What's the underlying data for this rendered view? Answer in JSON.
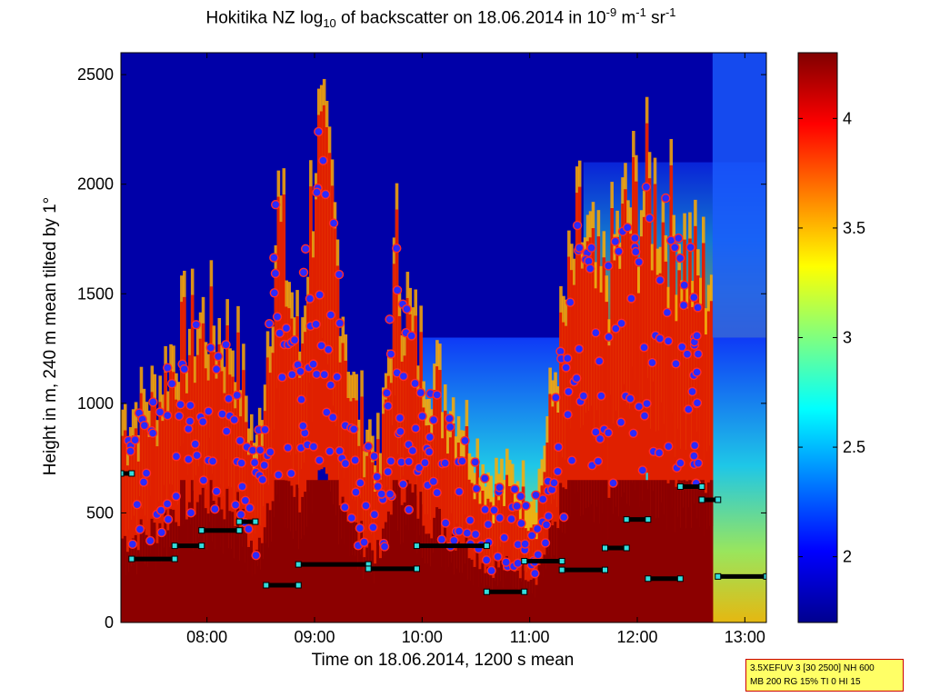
{
  "chart_data": {
    "type": "heatmap",
    "title": {
      "prefix": "Hokitika NZ log",
      "sub": "10",
      "mid": " of backscatter on 18.06.2014 in 10",
      "sup1": "-9",
      "mid2": " m",
      "sup2": "-1",
      "mid3": " sr",
      "sup3": "-1"
    },
    "xlabel": "Time on 18.06.2014, 1200 s mean",
    "ylabel": "Height in m, 240 m mean tilted by 1°",
    "x_ticks": [
      "08:00",
      "09:00",
      "10:00",
      "11:00",
      "12:00",
      "13:00"
    ],
    "x_tick_hours": [
      8,
      9,
      10,
      11,
      12,
      13
    ],
    "xlim_hours": [
      7.2,
      13.2
    ],
    "y_ticks": [
      0,
      500,
      1000,
      1500,
      2000,
      2500
    ],
    "ylim": [
      0,
      2600
    ],
    "colorbar": {
      "ticks": [
        2,
        2.5,
        3,
        3.5,
        4
      ],
      "tick_labels": [
        "2",
        "2.5",
        "3",
        "3.5",
        "4"
      ],
      "range": [
        1.7,
        4.3
      ],
      "colormap": "jet"
    },
    "layer_tops": [
      {
        "t": 7.25,
        "h": 900
      },
      {
        "t": 7.5,
        "h": 1000
      },
      {
        "t": 7.75,
        "h": 1300
      },
      {
        "t": 8.0,
        "h": 1350
      },
      {
        "t": 8.25,
        "h": 1250
      },
      {
        "t": 8.45,
        "h": 700
      },
      {
        "t": 8.65,
        "h": 1900
      },
      {
        "t": 8.85,
        "h": 1200
      },
      {
        "t": 9.0,
        "h": 2250
      },
      {
        "t": 9.15,
        "h": 1900
      },
      {
        "t": 9.35,
        "h": 1000
      },
      {
        "t": 9.6,
        "h": 700
      },
      {
        "t": 9.75,
        "h": 1700
      },
      {
        "t": 9.9,
        "h": 1300
      },
      {
        "t": 10.1,
        "h": 1100
      },
      {
        "t": 10.35,
        "h": 900
      },
      {
        "t": 10.6,
        "h": 600
      },
      {
        "t": 10.85,
        "h": 600
      },
      {
        "t": 11.05,
        "h": 500
      },
      {
        "t": 11.25,
        "h": 1200
      },
      {
        "t": 11.45,
        "h": 1800
      },
      {
        "t": 11.65,
        "h": 1500
      },
      {
        "t": 11.9,
        "h": 1900
      },
      {
        "t": 12.1,
        "h": 2000
      },
      {
        "t": 12.35,
        "h": 1800
      },
      {
        "t": 12.55,
        "h": 1600
      }
    ],
    "mixing_height_steps": [
      {
        "t0": 7.2,
        "t1": 7.3,
        "h": 680
      },
      {
        "t0": 7.3,
        "t1": 7.7,
        "h": 290
      },
      {
        "t0": 7.7,
        "t1": 7.95,
        "h": 350
      },
      {
        "t0": 7.95,
        "t1": 8.3,
        "h": 420
      },
      {
        "t0": 8.3,
        "t1": 8.45,
        "h": 460
      },
      {
        "t0": 8.55,
        "t1": 8.85,
        "h": 170
      },
      {
        "t0": 8.85,
        "t1": 9.5,
        "h": 265
      },
      {
        "t0": 9.5,
        "t1": 9.95,
        "h": 245
      },
      {
        "t0": 9.95,
        "t1": 10.6,
        "h": 350
      },
      {
        "t0": 10.6,
        "t1": 10.95,
        "h": 140
      },
      {
        "t0": 10.95,
        "t1": 11.3,
        "h": 280
      },
      {
        "t0": 11.3,
        "t1": 11.7,
        "h": 240
      },
      {
        "t0": 11.7,
        "t1": 11.9,
        "h": 340
      },
      {
        "t0": 11.9,
        "t1": 12.1,
        "h": 470
      },
      {
        "t0": 12.1,
        "t1": 12.4,
        "h": 200
      },
      {
        "t0": 12.4,
        "t1": 12.6,
        "h": 620
      },
      {
        "t0": 12.6,
        "t1": 12.75,
        "h": 560
      },
      {
        "t0": 12.75,
        "t1": 13.2,
        "h": 210
      }
    ]
  },
  "infobox": {
    "line1": "3.5XEFUV 3 [30 2500] NH 600",
    "line2": "MB 200 RG 15% TI 0 HI 15"
  }
}
